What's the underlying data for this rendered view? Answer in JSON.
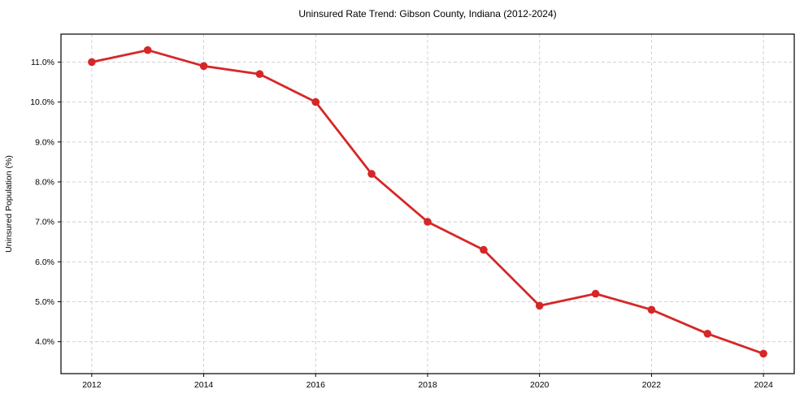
{
  "chart_data": {
    "type": "line",
    "title": "Uninsured Rate Trend: Gibson County, Indiana (2012-2024)",
    "xlabel": "",
    "ylabel": "Uninsured Population (%)",
    "x": [
      2012,
      2013,
      2014,
      2015,
      2016,
      2017,
      2018,
      2019,
      2020,
      2021,
      2022,
      2023,
      2024
    ],
    "series": [
      {
        "name": "Uninsured Rate",
        "values": [
          11.0,
          11.3,
          10.9,
          10.7,
          10.0,
          8.2,
          7.0,
          6.3,
          4.9,
          5.2,
          4.8,
          4.2,
          3.7
        ]
      }
    ],
    "x_ticks": [
      2012,
      2014,
      2016,
      2018,
      2020,
      2022,
      2024
    ],
    "y_ticks": [
      4.0,
      5.0,
      6.0,
      7.0,
      8.0,
      9.0,
      10.0,
      11.0
    ],
    "y_tick_suffix": "%",
    "xlim": [
      2011.45,
      2024.55
    ],
    "ylim": [
      3.2,
      11.7
    ],
    "grid": true,
    "legend": "none",
    "colors": {
      "line": "#d62728",
      "marker": "#d62728",
      "grid": "#cccccc",
      "frame": "#000000",
      "text": "#000000",
      "background": "#ffffff"
    }
  }
}
